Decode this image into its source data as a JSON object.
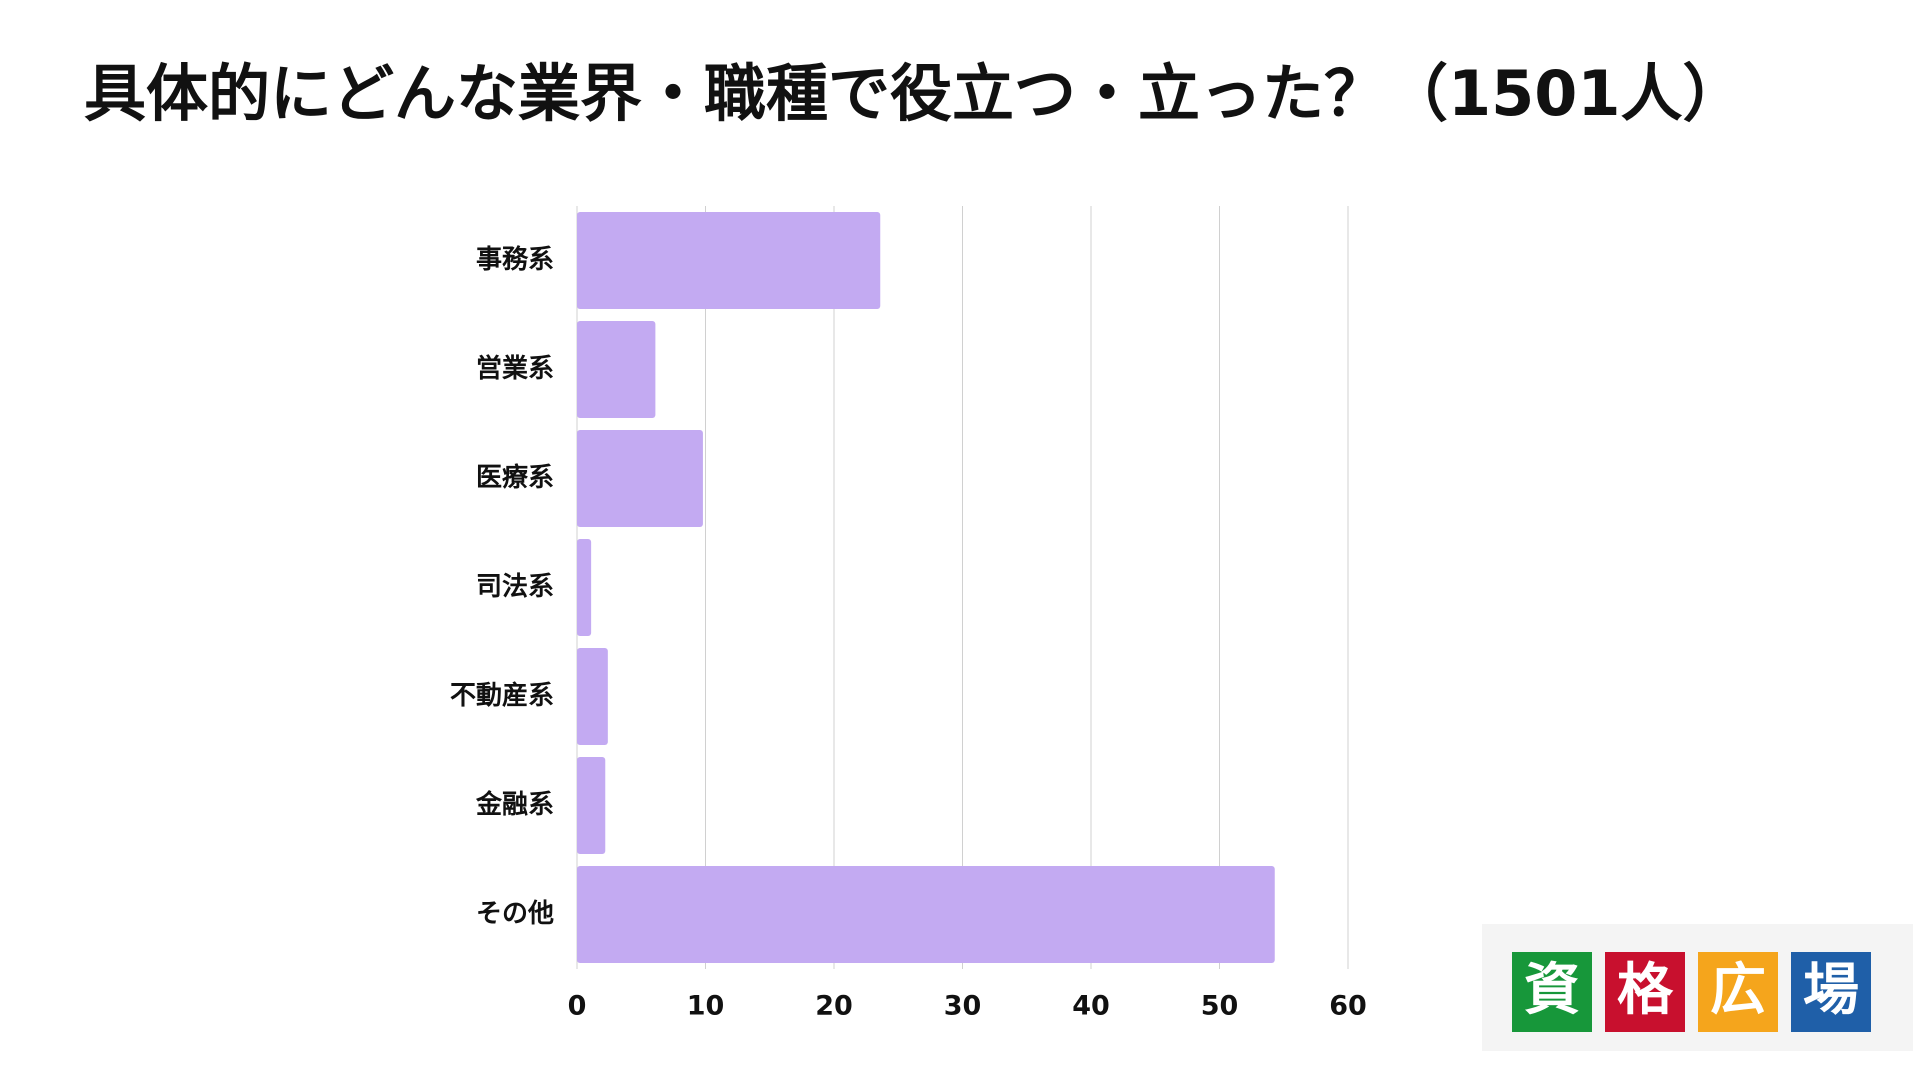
{
  "chart_data": {
    "type": "bar",
    "orientation": "horizontal",
    "title": "具体的にどんな業界・職種で役立つ・立った？（1501人）",
    "categories": [
      "事務系",
      "営業系",
      "医療系",
      "司法系",
      "不動産系",
      "金融系",
      "その他"
    ],
    "values": [
      23.6,
      6.1,
      9.8,
      1.1,
      2.4,
      2.2,
      54.3
    ],
    "color": "#c3aaf2",
    "xlim": [
      0,
      60
    ],
    "xticks": [
      0,
      10,
      20,
      30,
      40,
      50,
      60
    ],
    "grid": true
  },
  "logo": [
    "資",
    "格",
    "広",
    "場"
  ]
}
